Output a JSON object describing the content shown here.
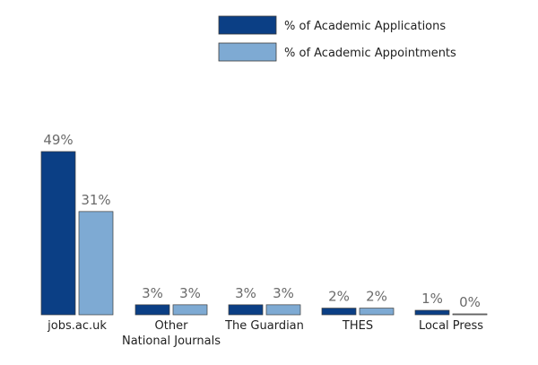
{
  "chart_data": {
    "type": "bar",
    "categories": [
      "jobs.ac.uk",
      "Other National Journals",
      "The Guardian",
      "THES",
      "Local Press"
    ],
    "category_lines": [
      [
        "jobs.ac.uk"
      ],
      [
        "Other",
        "National Journals"
      ],
      [
        "The Guardian"
      ],
      [
        "THES"
      ],
      [
        "Local Press"
      ]
    ],
    "series": [
      {
        "name": "% of Academic Applications",
        "color": "#0b3f85",
        "values": [
          49,
          3,
          3,
          2,
          1
        ],
        "labels": [
          "49%",
          "3%",
          "3%",
          "2%",
          "1%"
        ]
      },
      {
        "name": "% of Academic Appointments",
        "color": "#7eaad3",
        "values": [
          31,
          3,
          3,
          2,
          0
        ],
        "labels": [
          "31%",
          "3%",
          "3%",
          "2%",
          "0%"
        ]
      }
    ],
    "ylim": [
      0,
      49
    ],
    "grid": false,
    "legend_position": "top-right",
    "colors": {
      "label_text": "#6b6b6b",
      "category_text": "#1f1f1f",
      "bar_border": "#3d3d3d"
    }
  }
}
